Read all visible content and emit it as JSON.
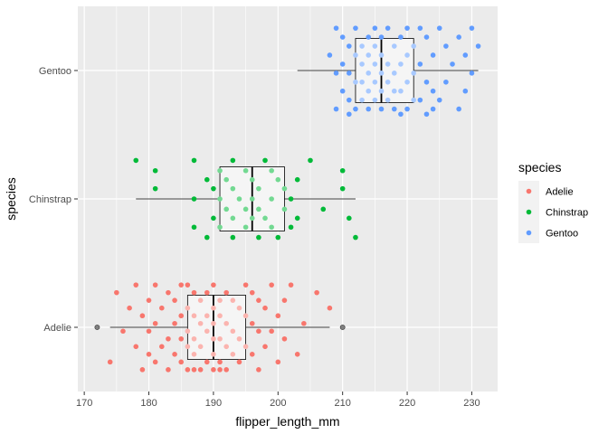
{
  "chart_data": {
    "type": "boxplot-jitter",
    "xlabel": "flipper_length_mm",
    "ylabel": "species",
    "xlim": [
      169,
      234
    ],
    "x_ticks": [
      170,
      180,
      190,
      200,
      210,
      220,
      230
    ],
    "categories": [
      "Adelie",
      "Chinstrap",
      "Gentoo"
    ],
    "grid": true,
    "legend": {
      "title": "species",
      "placement": "right",
      "entries": [
        "Adelie",
        "Chinstrap",
        "Gentoo"
      ]
    },
    "colors": {
      "Adelie": "#F8766D",
      "Chinstrap": "#00BA38",
      "Gentoo": "#619CFF",
      "panel_bg": "#EBEBEB",
      "grid": "#FFFFFF",
      "box_fill": "#F5F5F5",
      "outlier": "#808080"
    },
    "series": [
      {
        "name": "Adelie",
        "box": {
          "whisker_low": 174,
          "q1": 186,
          "median": 190,
          "q3": 195,
          "whisker_high": 208
        },
        "outliers": [
          172,
          210
        ],
        "points": [
          [
            178,
            -0.33
          ],
          [
            181,
            -0.33
          ],
          [
            185,
            -0.33
          ],
          [
            186,
            -0.33
          ],
          [
            190,
            -0.33
          ],
          [
            195,
            -0.33
          ],
          [
            199,
            -0.33
          ],
          [
            202,
            -0.33
          ],
          [
            175,
            -0.27
          ],
          [
            183,
            -0.27
          ],
          [
            187,
            -0.27
          ],
          [
            189,
            -0.27
          ],
          [
            192,
            -0.27
          ],
          [
            196,
            -0.27
          ],
          [
            206,
            -0.27
          ],
          [
            180,
            -0.21
          ],
          [
            184,
            -0.21
          ],
          [
            188,
            -0.21
          ],
          [
            191,
            -0.21
          ],
          [
            193,
            -0.21
          ],
          [
            197,
            -0.21
          ],
          [
            201,
            -0.21
          ],
          [
            177,
            -0.15
          ],
          [
            182,
            -0.15
          ],
          [
            186,
            -0.15
          ],
          [
            190,
            -0.15
          ],
          [
            194,
            -0.15
          ],
          [
            198,
            -0.15
          ],
          [
            208,
            -0.15
          ],
          [
            179,
            -0.09
          ],
          [
            185,
            -0.09
          ],
          [
            187,
            -0.09
          ],
          [
            189,
            -0.09
          ],
          [
            191,
            -0.09
          ],
          [
            195,
            -0.09
          ],
          [
            200,
            -0.09
          ],
          [
            181,
            -0.03
          ],
          [
            184,
            -0.03
          ],
          [
            188,
            -0.03
          ],
          [
            190,
            -0.03
          ],
          [
            192,
            -0.03
          ],
          [
            196,
            -0.03
          ],
          [
            204,
            -0.03
          ],
          [
            176,
            0.03
          ],
          [
            180,
            0.03
          ],
          [
            186,
            0.03
          ],
          [
            189,
            0.03
          ],
          [
            193,
            0.03
          ],
          [
            197,
            0.03
          ],
          [
            199,
            0.03
          ],
          [
            183,
            0.09
          ],
          [
            185,
            0.09
          ],
          [
            187,
            0.09
          ],
          [
            190,
            0.09
          ],
          [
            191,
            0.09
          ],
          [
            194,
            0.09
          ],
          [
            201,
            0.09
          ],
          [
            178,
            0.15
          ],
          [
            182,
            0.15
          ],
          [
            186,
            0.15
          ],
          [
            188,
            0.15
          ],
          [
            192,
            0.15
          ],
          [
            195,
            0.15
          ],
          [
            198,
            0.15
          ],
          [
            180,
            0.21
          ],
          [
            184,
            0.21
          ],
          [
            187,
            0.21
          ],
          [
            190,
            0.21
          ],
          [
            193,
            0.21
          ],
          [
            196,
            0.21
          ],
          [
            203,
            0.21
          ],
          [
            174,
            0.27
          ],
          [
            181,
            0.27
          ],
          [
            185,
            0.27
          ],
          [
            189,
            0.27
          ],
          [
            191,
            0.27
          ],
          [
            194,
            0.27
          ],
          [
            200,
            0.27
          ],
          [
            179,
            0.33
          ],
          [
            183,
            0.33
          ],
          [
            186,
            0.33
          ],
          [
            188,
            0.33
          ],
          [
            190,
            0.33
          ],
          [
            192,
            0.33
          ],
          [
            197,
            0.33
          ],
          [
            187,
            0.33
          ],
          [
            191,
            0.33
          ]
        ]
      },
      {
        "name": "Chinstrap",
        "box": {
          "whisker_low": 178,
          "q1": 191,
          "median": 196,
          "q3": 201,
          "whisker_high": 212
        },
        "outliers": [],
        "points": [
          [
            178,
            -0.3
          ],
          [
            187,
            -0.3
          ],
          [
            193,
            -0.3
          ],
          [
            198,
            -0.3
          ],
          [
            205,
            -0.3
          ],
          [
            181,
            -0.22
          ],
          [
            191,
            -0.22
          ],
          [
            195,
            -0.22
          ],
          [
            199,
            -0.22
          ],
          [
            210,
            -0.22
          ],
          [
            189,
            -0.15
          ],
          [
            192,
            -0.15
          ],
          [
            196,
            -0.15
          ],
          [
            200,
            -0.15
          ],
          [
            203,
            -0.15
          ],
          [
            181,
            -0.08
          ],
          [
            190,
            -0.08
          ],
          [
            193,
            -0.08
          ],
          [
            197,
            -0.08
          ],
          [
            201,
            -0.08
          ],
          [
            210,
            -0.08
          ],
          [
            187,
            0.0
          ],
          [
            191,
            0.0
          ],
          [
            194,
            0.0
          ],
          [
            196,
            0.0
          ],
          [
            199,
            0.0
          ],
          [
            202,
            0.0
          ],
          [
            192,
            0.08
          ],
          [
            195,
            0.08
          ],
          [
            197,
            0.08
          ],
          [
            201,
            0.08
          ],
          [
            207,
            0.08
          ],
          [
            190,
            0.15
          ],
          [
            193,
            0.15
          ],
          [
            196,
            0.15
          ],
          [
            198,
            0.15
          ],
          [
            203,
            0.15
          ],
          [
            211,
            0.15
          ],
          [
            187,
            0.22
          ],
          [
            191,
            0.22
          ],
          [
            195,
            0.22
          ],
          [
            199,
            0.22
          ],
          [
            202,
            0.22
          ],
          [
            189,
            0.3
          ],
          [
            193,
            0.3
          ],
          [
            197,
            0.3
          ],
          [
            200,
            0.3
          ],
          [
            212,
            0.3
          ]
        ]
      },
      {
        "name": "Gentoo",
        "box": {
          "whisker_low": 203,
          "q1": 212,
          "median": 216,
          "q3": 221,
          "whisker_high": 231
        },
        "outliers": [],
        "points": [
          [
            209,
            -0.33
          ],
          [
            212,
            -0.33
          ],
          [
            215,
            -0.33
          ],
          [
            217,
            -0.33
          ],
          [
            220,
            -0.33
          ],
          [
            222,
            -0.33
          ],
          [
            225,
            -0.33
          ],
          [
            230,
            -0.33
          ],
          [
            210,
            -0.26
          ],
          [
            214,
            -0.26
          ],
          [
            216,
            -0.26
          ],
          [
            219,
            -0.26
          ],
          [
            223,
            -0.26
          ],
          [
            228,
            -0.26
          ],
          [
            211,
            -0.19
          ],
          [
            213,
            -0.19
          ],
          [
            215,
            -0.19
          ],
          [
            218,
            -0.19
          ],
          [
            221,
            -0.19
          ],
          [
            226,
            -0.19
          ],
          [
            231,
            -0.19
          ],
          [
            208,
            -0.12
          ],
          [
            212,
            -0.12
          ],
          [
            214,
            -0.12
          ],
          [
            216,
            -0.12
          ],
          [
            220,
            -0.12
          ],
          [
            224,
            -0.12
          ],
          [
            229,
            -0.12
          ],
          [
            210,
            -0.05
          ],
          [
            213,
            -0.05
          ],
          [
            215,
            -0.05
          ],
          [
            217,
            -0.05
          ],
          [
            219,
            -0.05
          ],
          [
            222,
            -0.05
          ],
          [
            227,
            -0.05
          ],
          [
            209,
            0.02
          ],
          [
            211,
            0.02
          ],
          [
            214,
            0.02
          ],
          [
            216,
            0.02
          ],
          [
            218,
            0.02
          ],
          [
            221,
            0.02
          ],
          [
            230,
            0.02
          ],
          [
            212,
            0.09
          ],
          [
            213,
            0.09
          ],
          [
            215,
            0.09
          ],
          [
            217,
            0.09
          ],
          [
            220,
            0.09
          ],
          [
            223,
            0.09
          ],
          [
            226,
            0.09
          ],
          [
            210,
            0.16
          ],
          [
            214,
            0.16
          ],
          [
            216,
            0.16
          ],
          [
            218,
            0.16
          ],
          [
            219,
            0.16
          ],
          [
            224,
            0.16
          ],
          [
            229,
            0.16
          ],
          [
            211,
            0.23
          ],
          [
            213,
            0.23
          ],
          [
            215,
            0.23
          ],
          [
            217,
            0.23
          ],
          [
            221,
            0.23
          ],
          [
            222,
            0.23
          ],
          [
            225,
            0.23
          ],
          [
            209,
            0.3
          ],
          [
            212,
            0.3
          ],
          [
            214,
            0.3
          ],
          [
            216,
            0.3
          ],
          [
            218,
            0.3
          ],
          [
            220,
            0.3
          ],
          [
            224,
            0.3
          ],
          [
            228,
            0.3
          ],
          [
            211,
            0.34
          ],
          [
            219,
            0.34
          ],
          [
            223,
            0.34
          ]
        ]
      }
    ]
  }
}
